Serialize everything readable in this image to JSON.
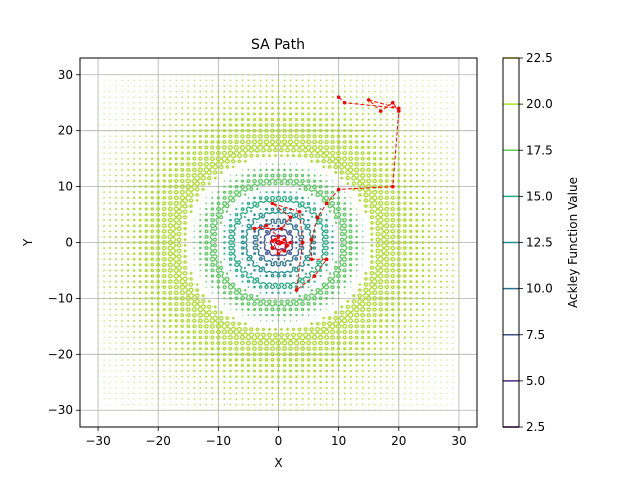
{
  "chart_data": {
    "type": "contour",
    "title": "SA Path",
    "xlabel": "X",
    "ylabel": "Y",
    "xlim": [
      -33,
      33
    ],
    "ylim": [
      -33,
      33
    ],
    "xticks": [
      -30,
      -20,
      -10,
      0,
      10,
      20,
      30
    ],
    "yticks": [
      -30,
      -20,
      -10,
      0,
      10,
      20,
      30
    ],
    "grid": true,
    "function": "Ackley",
    "contour_levels": [
      2.5,
      5.0,
      7.5,
      10.0,
      12.5,
      15.0,
      17.5,
      20.0,
      22.5
    ],
    "colorbar": {
      "label": "Ackley Function Value",
      "ticks": [
        "2.5",
        "5.0",
        "7.5",
        "10.0",
        "12.5",
        "15.0",
        "17.5",
        "20.0",
        "22.5"
      ],
      "colors": [
        "#440154",
        "#472d7b",
        "#3b528b",
        "#2c728e",
        "#21918c",
        "#28ae80",
        "#5ec962",
        "#addc30",
        "#fde725"
      ]
    },
    "path": {
      "color": "#ff0000",
      "style": "dashed",
      "marker": "dot",
      "points": [
        [
          10,
          26
        ],
        [
          11,
          25
        ],
        [
          20,
          24
        ],
        [
          15,
          25.5
        ],
        [
          17,
          23.5
        ],
        [
          19,
          25
        ],
        [
          20,
          23.5
        ],
        [
          19,
          10
        ],
        [
          10,
          9.5
        ],
        [
          8,
          7
        ],
        [
          6.5,
          4.5
        ],
        [
          5.5,
          0.5
        ],
        [
          5.5,
          -3
        ],
        [
          8,
          -3
        ],
        [
          6,
          -6
        ],
        [
          3,
          -8.5
        ],
        [
          4,
          0
        ],
        [
          3.5,
          5.5
        ],
        [
          -1,
          7
        ],
        [
          2,
          4.5
        ],
        [
          0.5,
          2.5
        ],
        [
          -4,
          2.5
        ],
        [
          -2,
          3
        ],
        [
          0,
          1
        ],
        [
          -1,
          -1
        ],
        [
          1,
          -1.5
        ],
        [
          2,
          0
        ],
        [
          0.5,
          0
        ],
        [
          -0.5,
          0.5
        ],
        [
          1.5,
          -0.5
        ],
        [
          0,
          -2
        ],
        [
          -1,
          0.3
        ],
        [
          1,
          0.5
        ],
        [
          0.2,
          -0.2
        ]
      ]
    }
  }
}
